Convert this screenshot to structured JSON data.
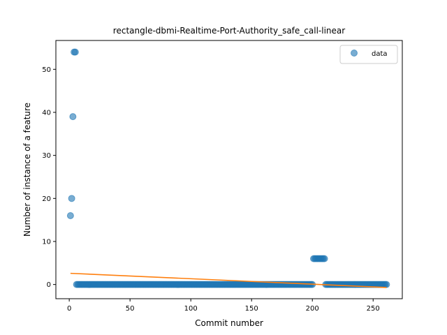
{
  "chart_data": {
    "type": "scatter",
    "title": "rectangle-dbmi-Realtime-Port-Authority_safe_call-linear",
    "xlabel": "Commit number",
    "ylabel": "Number of instance of a feature",
    "xlim": [
      -11,
      274
    ],
    "ylim": [
      -3.3,
      56.7
    ],
    "xticks": [
      0,
      50,
      100,
      150,
      200,
      250
    ],
    "yticks": [
      0,
      10,
      20,
      30,
      40,
      50
    ],
    "legend": {
      "position": "top-right",
      "entries": [
        "data"
      ]
    },
    "colors": {
      "data": "#1f77b4",
      "fit": "#ff7f0e"
    },
    "series": [
      {
        "name": "data",
        "kind": "scatter",
        "points": [
          [
            1,
            16
          ],
          [
            2,
            20
          ],
          [
            3,
            39
          ],
          [
            4,
            54
          ],
          [
            5,
            54
          ],
          [
            201,
            6
          ],
          [
            202,
            6
          ],
          [
            203,
            6
          ],
          [
            204,
            6
          ],
          [
            205,
            6
          ],
          [
            206,
            6
          ],
          [
            207,
            6
          ],
          [
            208,
            6
          ],
          [
            209,
            6
          ],
          [
            210,
            6
          ]
        ],
        "zero_runs": [
          [
            6,
            200
          ],
          [
            211,
            261
          ]
        ],
        "zero_value": 0
      },
      {
        "kind": "line",
        "points": [
          [
            1,
            2.6
          ],
          [
            261,
            -0.7
          ]
        ]
      }
    ]
  }
}
